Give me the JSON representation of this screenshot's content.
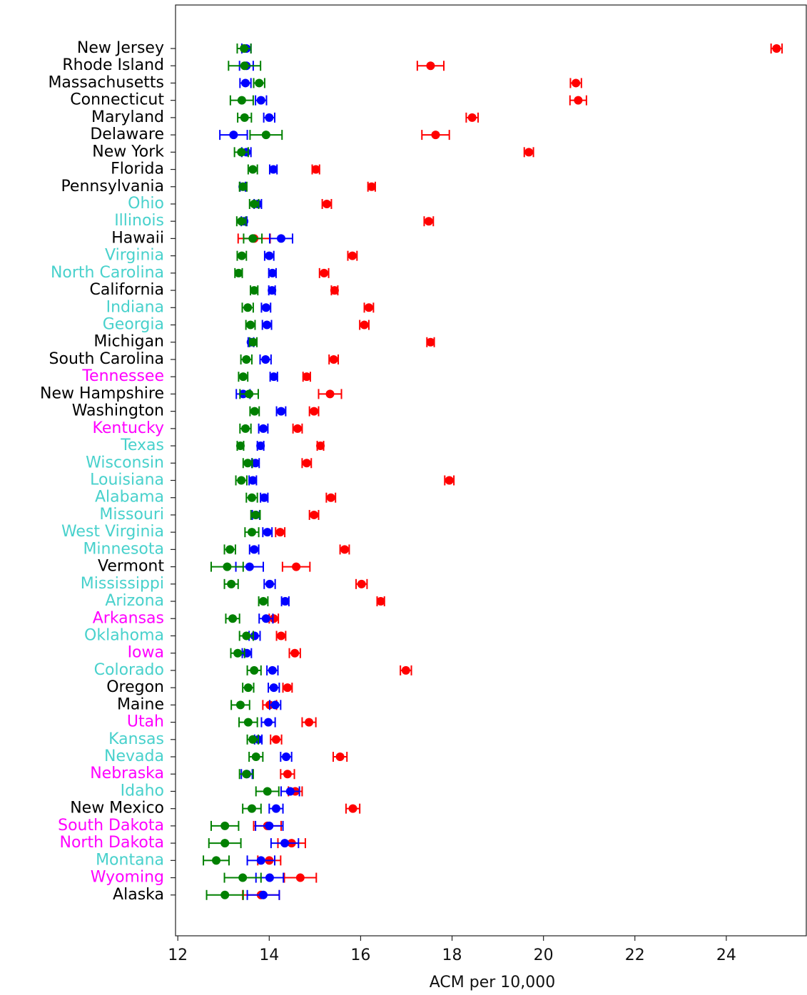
{
  "chart_data": {
    "type": "errorbar_dot",
    "orientation": "horizontal",
    "xlabel": "ACM per 10,000",
    "xlim": [
      11.95,
      25.75
    ],
    "xticks": [
      12,
      14,
      16,
      18,
      20,
      22,
      24
    ],
    "categories": [
      "New Jersey",
      "Rhode Island",
      "Massachusetts",
      "Connecticut",
      "Maryland",
      "Delaware",
      "New York",
      "Florida",
      "Pennsylvania",
      "Ohio",
      "Illinois",
      "Hawaii",
      "Virginia",
      "North Carolina",
      "California",
      "Indiana",
      "Georgia",
      "Michigan",
      "South Carolina",
      "Tennessee",
      "New Hampshire",
      "Washington",
      "Kentucky",
      "Texas",
      "Wisconsin",
      "Louisiana",
      "Alabama",
      "Missouri",
      "West Virginia",
      "Minnesota",
      "Vermont",
      "Mississippi",
      "Arizona",
      "Arkansas",
      "Oklahoma",
      "Iowa",
      "Colorado",
      "Oregon",
      "Maine",
      "Utah",
      "Kansas",
      "Nevada",
      "Nebraska",
      "Idaho",
      "New Mexico",
      "South Dakota",
      "North Dakota",
      "Montana",
      "Wyoming",
      "Alaska"
    ],
    "label_colors": [
      "black",
      "black",
      "black",
      "black",
      "black",
      "black",
      "black",
      "black",
      "black",
      "mediumturquoise",
      "mediumturquoise",
      "black",
      "mediumturquoise",
      "mediumturquoise",
      "black",
      "mediumturquoise",
      "mediumturquoise",
      "black",
      "black",
      "magenta",
      "black",
      "black",
      "magenta",
      "mediumturquoise",
      "mediumturquoise",
      "mediumturquoise",
      "mediumturquoise",
      "mediumturquoise",
      "mediumturquoise",
      "mediumturquoise",
      "black",
      "mediumturquoise",
      "mediumturquoise",
      "magenta",
      "mediumturquoise",
      "magenta",
      "mediumturquoise",
      "black",
      "black",
      "magenta",
      "mediumturquoise",
      "mediumturquoise",
      "magenta",
      "mediumturquoise",
      "black",
      "magenta",
      "magenta",
      "mediumturquoise",
      "magenta",
      "black"
    ],
    "series": [
      {
        "color": "red",
        "values": [
          25.1,
          17.53,
          20.71,
          20.76,
          18.44,
          17.64,
          19.68,
          15.02,
          16.24,
          15.26,
          17.49,
          13.67,
          15.82,
          15.2,
          15.43,
          16.18,
          16.08,
          17.53,
          15.41,
          14.82,
          15.33,
          14.98,
          14.62,
          15.12,
          14.82,
          17.94,
          15.35,
          14.98,
          14.24,
          15.65,
          14.59,
          16.02,
          16.44,
          14.1,
          14.26,
          14.56,
          16.99,
          14.4,
          14.01,
          14.87,
          14.15,
          15.55,
          14.4,
          14.57,
          15.83,
          13.96,
          14.49,
          14.0,
          14.68,
          13.82
        ],
        "errors": [
          0.12,
          0.29,
          0.12,
          0.18,
          0.13,
          0.3,
          0.1,
          0.08,
          0.08,
          0.1,
          0.1,
          0.35,
          0.1,
          0.1,
          0.07,
          0.1,
          0.1,
          0.08,
          0.1,
          0.08,
          0.25,
          0.1,
          0.1,
          0.07,
          0.1,
          0.1,
          0.1,
          0.1,
          0.1,
          0.1,
          0.3,
          0.12,
          0.08,
          0.1,
          0.1,
          0.12,
          0.12,
          0.1,
          0.15,
          0.15,
          0.12,
          0.15,
          0.15,
          0.15,
          0.15,
          0.3,
          0.3,
          0.25,
          0.35,
          0.4
        ]
      },
      {
        "color": "blue",
        "values": [
          13.5,
          13.5,
          13.48,
          13.82,
          14.0,
          13.22,
          13.5,
          14.09,
          13.42,
          13.75,
          13.45,
          14.26,
          14.0,
          14.07,
          14.06,
          13.93,
          13.95,
          13.6,
          13.92,
          14.1,
          13.43,
          14.26,
          13.87,
          13.81,
          13.7,
          13.64,
          13.89,
          13.71,
          13.96,
          13.67,
          13.57,
          14.01,
          14.35,
          13.93,
          13.68,
          13.51,
          14.07,
          14.1,
          14.13,
          13.98,
          13.76,
          14.37,
          13.51,
          14.46,
          14.15,
          14.0,
          14.34,
          13.82,
          14.01,
          13.87
        ],
        "errors": [
          0.1,
          0.15,
          0.12,
          0.12,
          0.12,
          0.3,
          0.1,
          0.08,
          0.06,
          0.08,
          0.06,
          0.25,
          0.1,
          0.08,
          0.07,
          0.1,
          0.1,
          0.06,
          0.12,
          0.08,
          0.15,
          0.1,
          0.1,
          0.07,
          0.08,
          0.08,
          0.08,
          0.08,
          0.1,
          0.1,
          0.3,
          0.12,
          0.08,
          0.15,
          0.12,
          0.1,
          0.12,
          0.12,
          0.12,
          0.15,
          0.08,
          0.12,
          0.12,
          0.2,
          0.15,
          0.3,
          0.3,
          0.3,
          0.3,
          0.35
        ]
      },
      {
        "color": "green",
        "values": [
          13.45,
          13.46,
          13.78,
          13.4,
          13.46,
          13.93,
          13.39,
          13.64,
          13.43,
          13.67,
          13.39,
          13.64,
          13.4,
          13.33,
          13.67,
          13.53,
          13.59,
          13.65,
          13.5,
          13.43,
          13.56,
          13.68,
          13.48,
          13.37,
          13.53,
          13.39,
          13.62,
          13.7,
          13.62,
          13.14,
          13.08,
          13.17,
          13.87,
          13.2,
          13.5,
          13.31,
          13.67,
          13.54,
          13.37,
          13.54,
          13.64,
          13.71,
          13.5,
          13.96,
          13.62,
          13.03,
          13.03,
          12.84,
          13.42,
          13.03
        ],
        "errors": [
          0.15,
          0.35,
          0.12,
          0.25,
          0.15,
          0.35,
          0.15,
          0.1,
          0.08,
          0.1,
          0.1,
          0.2,
          0.1,
          0.08,
          0.08,
          0.12,
          0.1,
          0.08,
          0.12,
          0.1,
          0.2,
          0.1,
          0.12,
          0.07,
          0.1,
          0.12,
          0.12,
          0.1,
          0.15,
          0.12,
          0.35,
          0.15,
          0.1,
          0.15,
          0.15,
          0.15,
          0.15,
          0.12,
          0.2,
          0.2,
          0.12,
          0.15,
          0.15,
          0.25,
          0.2,
          0.3,
          0.35,
          0.28,
          0.4,
          0.4
        ]
      }
    ]
  }
}
